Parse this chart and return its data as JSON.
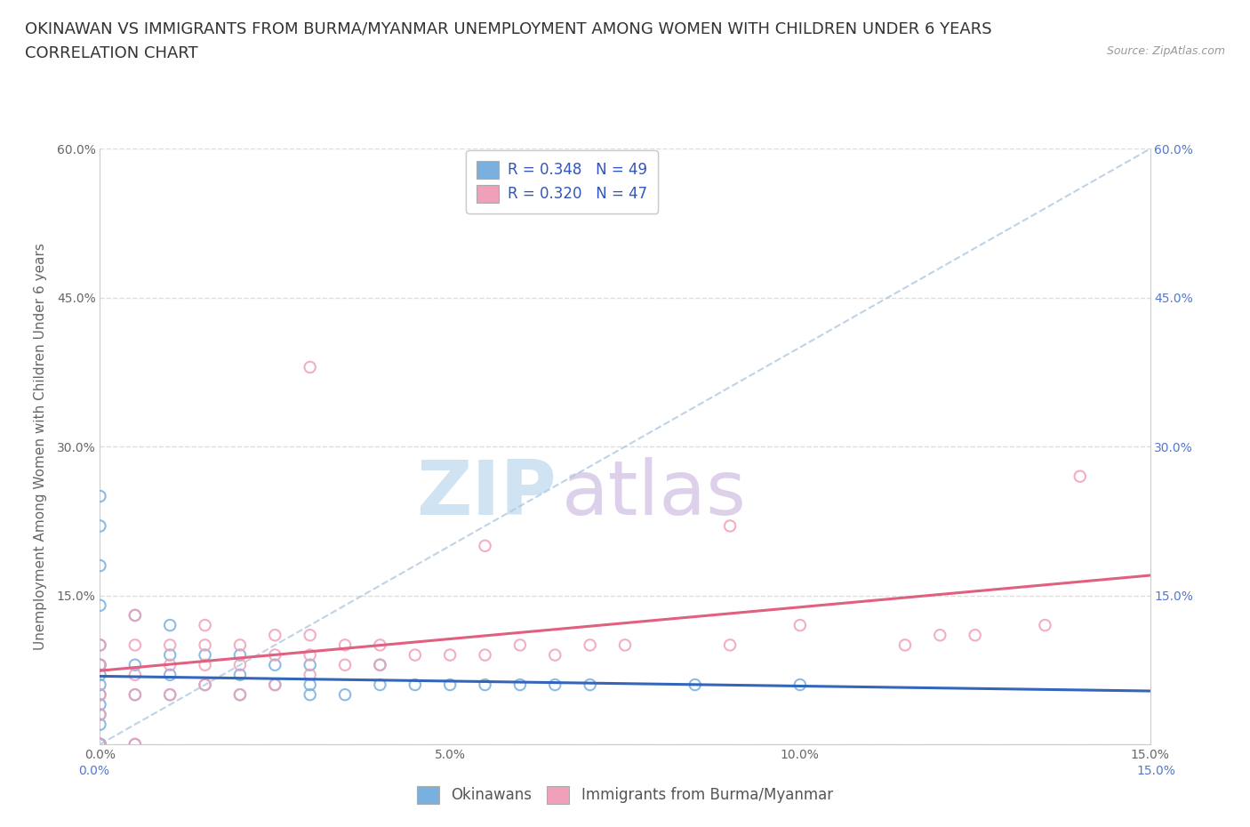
{
  "title_line1": "OKINAWAN VS IMMIGRANTS FROM BURMA/MYANMAR UNEMPLOYMENT AMONG WOMEN WITH CHILDREN UNDER 6 YEARS",
  "title_line2": "CORRELATION CHART",
  "source_text": "Source: ZipAtlas.com",
  "ylabel": "Unemployment Among Women with Children Under 6 years",
  "watermark_zip": "ZIP",
  "watermark_atlas": "atlas",
  "legend_entries": [
    {
      "label": "Okinawans",
      "R": "0.348",
      "N": "49",
      "color": "#a8c8f0"
    },
    {
      "label": "Immigrants from Burma/Myanmar",
      "R": "0.320",
      "N": "47",
      "color": "#f4a0b0"
    }
  ],
  "xlim": [
    0.0,
    0.15
  ],
  "ylim": [
    0.0,
    0.6
  ],
  "xticks": [
    0.0,
    0.05,
    0.1,
    0.15
  ],
  "yticks": [
    0.0,
    0.15,
    0.3,
    0.45,
    0.6
  ],
  "xticklabels": [
    "0.0%",
    "5.0%",
    "10.0%",
    "15.0%"
  ],
  "left_yticklabels": [
    "",
    "15.0%",
    "30.0%",
    "45.0%",
    "60.0%"
  ],
  "right_yticklabels": [
    "",
    "15.0%",
    "30.0%",
    "45.0%",
    "60.0%"
  ],
  "okinawan_color": "#7ab0e0",
  "burma_color": "#f0a0b8",
  "okinawan_trend_color": "#3366bb",
  "burma_trend_color": "#e06080",
  "legend_R_color": "#3355bb",
  "background_color": "#ffffff",
  "grid_color": "#dddddd",
  "title_fontsize": 13,
  "axis_label_fontsize": 11,
  "tick_fontsize": 10,
  "legend_fontsize": 12,
  "ok_x": [
    0.0,
    0.0,
    0.0,
    0.0,
    0.0,
    0.0,
    0.0,
    0.0,
    0.0,
    0.0,
    0.0,
    0.0,
    0.0,
    0.0,
    0.0,
    0.0,
    0.0,
    0.0,
    0.0,
    0.0,
    0.005,
    0.005,
    0.005,
    0.005,
    0.01,
    0.01,
    0.01,
    0.01,
    0.015,
    0.015,
    0.02,
    0.02,
    0.02,
    0.025,
    0.025,
    0.03,
    0.03,
    0.03,
    0.035,
    0.04,
    0.04,
    0.045,
    0.05,
    0.055,
    0.06,
    0.065,
    0.07,
    0.085,
    0.1
  ],
  "ok_y": [
    0.0,
    0.0,
    0.0,
    0.0,
    0.0,
    0.0,
    0.0,
    0.02,
    0.03,
    0.04,
    0.05,
    0.06,
    0.07,
    0.08,
    0.22,
    0.25,
    0.08,
    0.1,
    0.14,
    0.18,
    0.0,
    0.05,
    0.08,
    0.13,
    0.05,
    0.07,
    0.09,
    0.12,
    0.06,
    0.09,
    0.05,
    0.07,
    0.09,
    0.06,
    0.08,
    0.05,
    0.06,
    0.08,
    0.05,
    0.06,
    0.08,
    0.06,
    0.06,
    0.06,
    0.06,
    0.06,
    0.06,
    0.06,
    0.06
  ],
  "bm_x": [
    0.0,
    0.0,
    0.0,
    0.0,
    0.0,
    0.005,
    0.005,
    0.005,
    0.005,
    0.005,
    0.01,
    0.01,
    0.01,
    0.015,
    0.015,
    0.015,
    0.015,
    0.02,
    0.02,
    0.02,
    0.025,
    0.025,
    0.025,
    0.03,
    0.03,
    0.03,
    0.03,
    0.035,
    0.035,
    0.04,
    0.04,
    0.045,
    0.05,
    0.055,
    0.055,
    0.06,
    0.065,
    0.07,
    0.075,
    0.09,
    0.09,
    0.1,
    0.115,
    0.12,
    0.125,
    0.135,
    0.14
  ],
  "bm_y": [
    0.0,
    0.03,
    0.05,
    0.08,
    0.1,
    0.0,
    0.05,
    0.07,
    0.1,
    0.13,
    0.05,
    0.08,
    0.1,
    0.06,
    0.08,
    0.1,
    0.12,
    0.05,
    0.08,
    0.1,
    0.06,
    0.09,
    0.11,
    0.07,
    0.09,
    0.11,
    0.38,
    0.08,
    0.1,
    0.08,
    0.1,
    0.09,
    0.09,
    0.09,
    0.2,
    0.1,
    0.09,
    0.1,
    0.1,
    0.1,
    0.22,
    0.12,
    0.1,
    0.11,
    0.11,
    0.12,
    0.27
  ]
}
